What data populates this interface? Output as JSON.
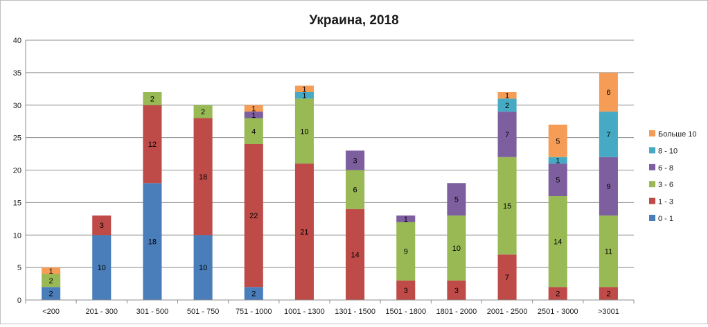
{
  "chart_data": {
    "type": "bar",
    "stacked": true,
    "title": "Украина, 2018",
    "xlabel": "",
    "ylabel": "",
    "ylim": [
      0,
      40
    ],
    "yticks": [
      0,
      5,
      10,
      15,
      20,
      25,
      30,
      35,
      40
    ],
    "grid": true,
    "legend": "right",
    "categories": [
      "<200",
      "201 - 300",
      "301 - 500",
      "501 - 750",
      "751 - 1000",
      "1001 - 1300",
      "1301 - 1500",
      "1501 - 1800",
      "1801 - 2000",
      "2001 - 2500",
      "2501 - 3000",
      ">3001"
    ],
    "series": [
      {
        "name": "0 - 1",
        "color": "#4a7ebb",
        "values": [
          2,
          10,
          18,
          10,
          2,
          0,
          0,
          0,
          0,
          0,
          0,
          0
        ]
      },
      {
        "name": "1 - 3",
        "color": "#be4b48",
        "values": [
          0,
          3,
          12,
          18,
          22,
          21,
          14,
          3,
          3,
          7,
          2,
          2
        ]
      },
      {
        "name": "3 - 6",
        "color": "#98b954",
        "values": [
          2,
          0,
          2,
          2,
          4,
          10,
          6,
          9,
          10,
          15,
          14,
          11
        ]
      },
      {
        "name": "6 - 8",
        "color": "#7d5fa0",
        "values": [
          0,
          0,
          0,
          0,
          1,
          0,
          3,
          1,
          5,
          7,
          5,
          9
        ]
      },
      {
        "name": "8 - 10",
        "color": "#46aac5",
        "values": [
          0,
          0,
          0,
          0,
          0,
          1,
          0,
          0,
          0,
          2,
          1,
          7
        ]
      },
      {
        "name": "Больше 10",
        "color": "#f59d56",
        "values": [
          1,
          0,
          0,
          0,
          1,
          1,
          0,
          0,
          0,
          1,
          5,
          6
        ]
      }
    ]
  }
}
